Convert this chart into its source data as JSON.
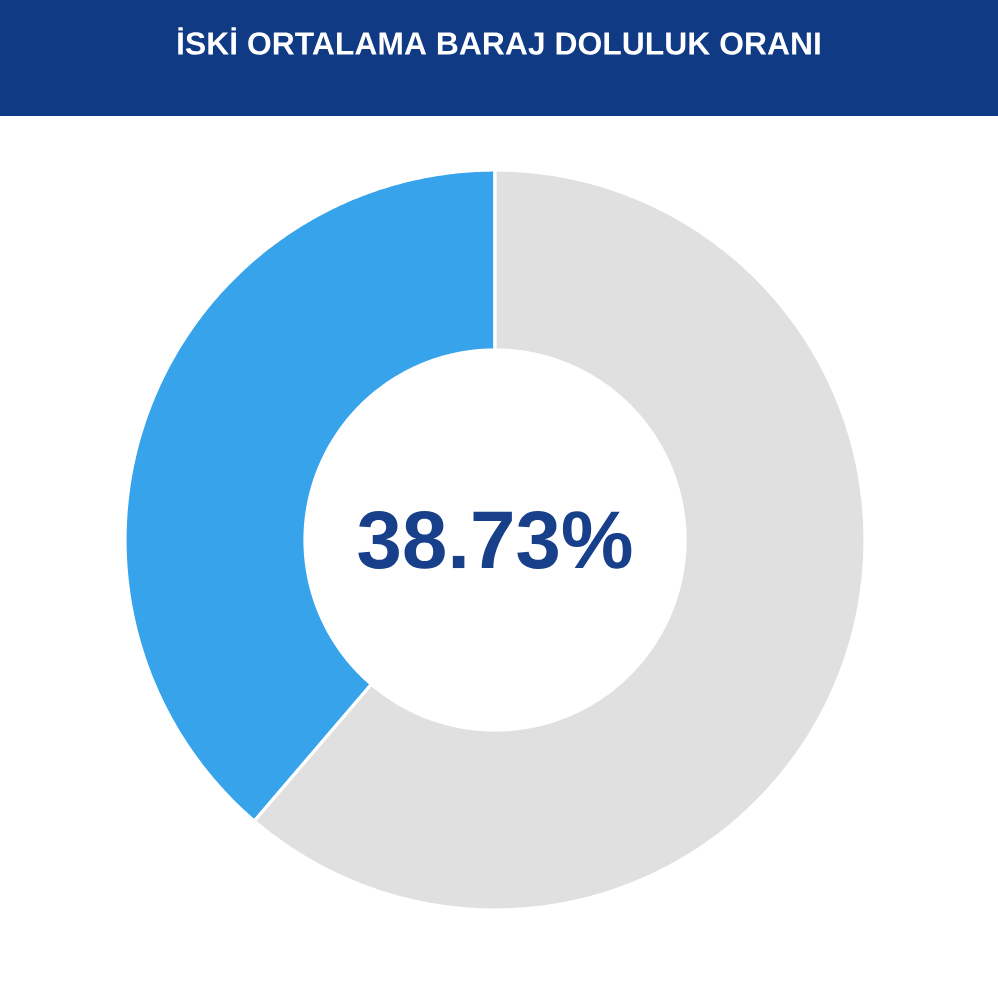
{
  "chart_data": {
    "type": "donut",
    "title": "İSKİ ORTALAMA BARAJ DOLULUK ORANI",
    "categories": [
      null,
      null
    ],
    "values": [
      38.73,
      61.27
    ],
    "colors": [
      "#37a3eb",
      "#e0e0e0"
    ],
    "annotations": [
      "38.73%"
    ]
  }
}
